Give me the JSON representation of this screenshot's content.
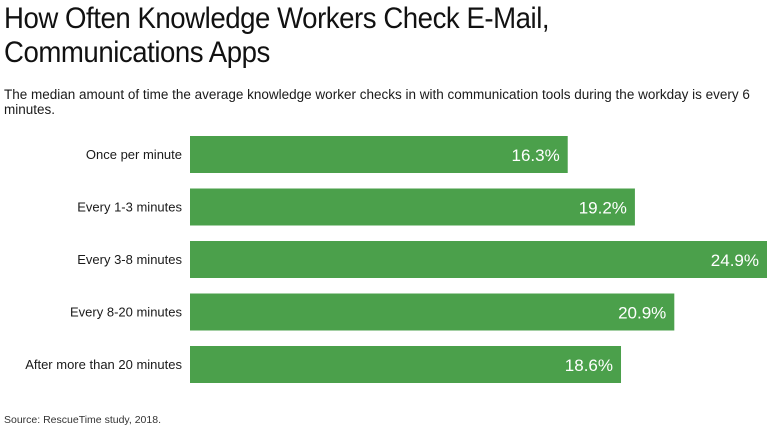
{
  "chart_data": {
    "type": "bar",
    "orientation": "horizontal",
    "title": "How Often Knowledge Workers Check E-Mail, Communications Apps",
    "subtitle": "The median amount of time the average knowledge worker checks in with communication tools during the workday is every 6 minutes.",
    "categories": [
      "Once per minute",
      "Every 1-3 minutes",
      "Every 3-8 minutes",
      "Every 8-20 minutes",
      "After more than 20 minutes"
    ],
    "values": [
      16.3,
      19.2,
      24.9,
      20.9,
      18.6
    ],
    "value_labels": [
      "16.3%",
      "19.2%",
      "24.9%",
      "20.9%",
      "18.6%"
    ],
    "unit": "%",
    "xlim": [
      0,
      24.9
    ],
    "grid": false,
    "legend": "none",
    "bar_color": "#4ba04b",
    "label_color": "#ffffff",
    "source": "Source: RescueTime study, 2018."
  }
}
